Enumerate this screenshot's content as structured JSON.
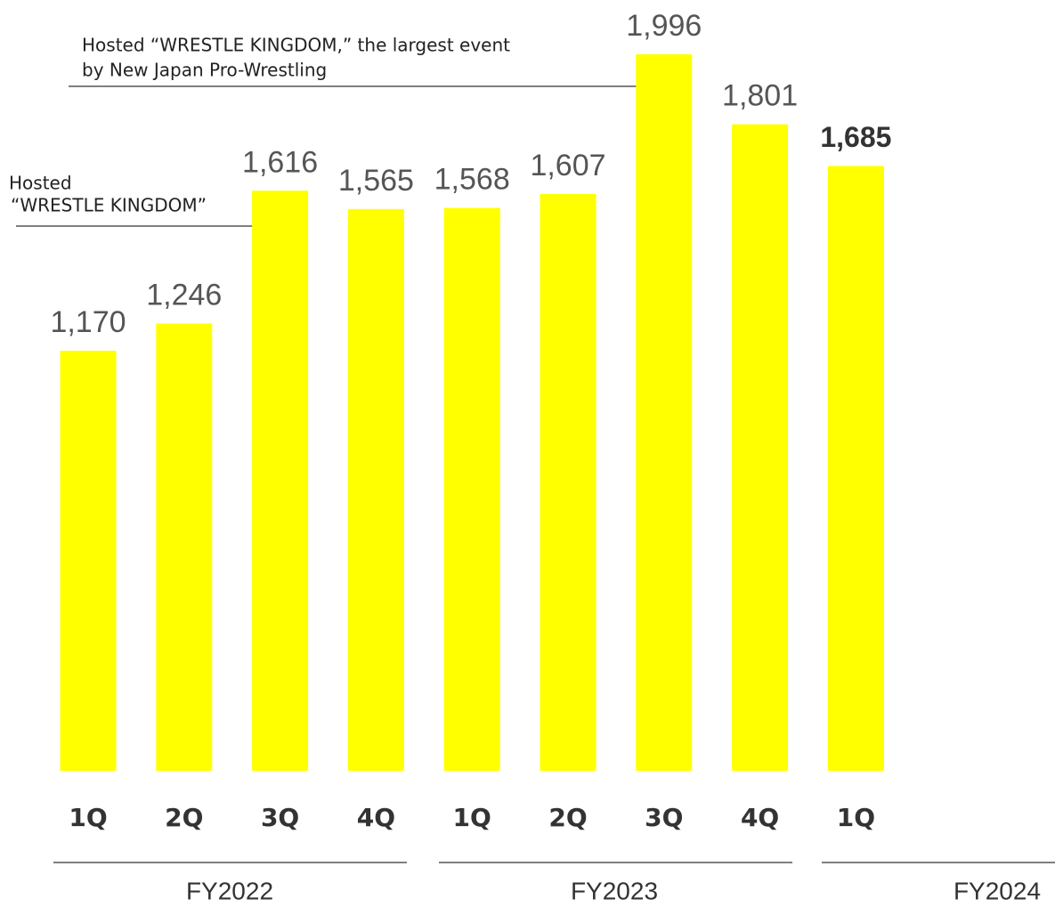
{
  "chart_data": {
    "type": "bar",
    "categories": [
      "1Q",
      "2Q",
      "3Q",
      "4Q",
      "1Q",
      "2Q",
      "3Q",
      "4Q",
      "1Q"
    ],
    "values": [
      1170,
      1246,
      1616,
      1565,
      1568,
      1607,
      1996,
      1801,
      1685
    ],
    "value_labels": [
      "1,170",
      "1,246",
      "1,616",
      "1,565",
      "1,568",
      "1,607",
      "1,996",
      "1,801",
      "1,685"
    ],
    "color": "#ffff00",
    "groups": [
      "FY2022",
      "FY2023",
      "FY2024"
    ],
    "annotations": [
      [
        "Hosted “WRESTLE KINGDOM,” the largest event",
        "by New Japan Pro-Wrestling"
      ],
      [
        "Hosted",
        " “WRESTLE KINGDOM”"
      ]
    ]
  }
}
